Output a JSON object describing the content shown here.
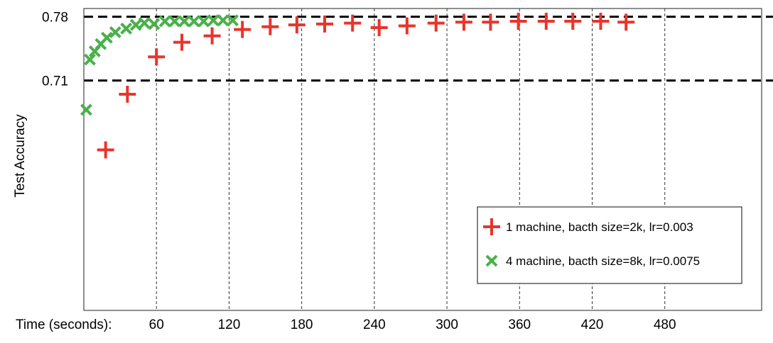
{
  "chart_data": {
    "type": "scatter",
    "title": "",
    "xlabel": "Time (seconds):",
    "ylabel": "Test Accuracy",
    "xlim": [
      0,
      560
    ],
    "ylim": [
      0.458,
      0.789
    ],
    "xticks": [
      60,
      120,
      180,
      240,
      300,
      360,
      420,
      480
    ],
    "yticks": [
      0.71,
      0.78
    ],
    "vertical_grid": "dashed at x ticks",
    "reference_lines": [
      0.71,
      0.78
    ],
    "legend_position": "lower-right",
    "series": [
      {
        "name": "1 machine, bacth size=2k, lr=0.003",
        "marker": "plus",
        "color": "#e8352b",
        "x": [
          18,
          36,
          60,
          81,
          106,
          131,
          154,
          176,
          199,
          222,
          244,
          267,
          291,
          314,
          336,
          359,
          382,
          404,
          427,
          448
        ],
        "y": [
          0.634,
          0.695,
          0.736,
          0.752,
          0.759,
          0.766,
          0.769,
          0.771,
          0.772,
          0.773,
          0.768,
          0.77,
          0.773,
          0.774,
          0.774,
          0.775,
          0.775,
          0.775,
          0.775,
          0.774
        ]
      },
      {
        "name": "4 machine, bacth size=8k, lr=0.0075",
        "marker": "x",
        "color": "#4ab04a",
        "x": [
          2,
          5,
          9,
          14,
          19,
          26,
          35,
          43,
          50,
          58,
          67,
          75,
          83,
          91,
          99,
          107,
          115,
          123
        ],
        "y": [
          0.678,
          0.733,
          0.742,
          0.75,
          0.757,
          0.763,
          0.767,
          0.771,
          0.773,
          0.772,
          0.775,
          0.775,
          0.775,
          0.775,
          0.775,
          0.776,
          0.776,
          0.776
        ]
      }
    ]
  }
}
